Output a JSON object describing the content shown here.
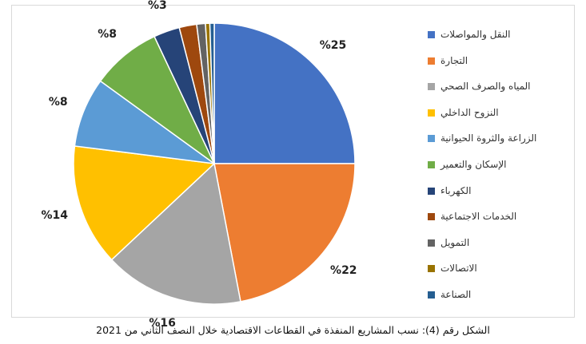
{
  "caption": "الشكل رقم (4): نسب المشاريع المنفذة في القطاعات الاقتصادية خلال النصف الثاني من 2021",
  "chart_data": {
    "type": "pie",
    "title": "",
    "slices": [
      {
        "name": "النقل والمواصلات",
        "value": 25,
        "color": "#4472c4",
        "label": "%25"
      },
      {
        "name": "التجارة",
        "value": 22,
        "color": "#ed7d31",
        "label": "%22"
      },
      {
        "name": "المياه والصرف الصحي",
        "value": 16,
        "color": "#a5a5a5",
        "label": "%16"
      },
      {
        "name": "النزوح الداخلي",
        "value": 14,
        "color": "#ffc000",
        "label": "%14"
      },
      {
        "name": "الزراعة والثروة الحيوانية",
        "value": 8,
        "color": "#5b9bd5",
        "label": "%8"
      },
      {
        "name": "الإسكان والتعمير",
        "value": 8,
        "color": "#70ad47",
        "label": "%8"
      },
      {
        "name": "الكهرباء",
        "value": 3,
        "color": "#264478",
        "label": "%3"
      },
      {
        "name": "الخدمات الاجتماعية",
        "value": 2,
        "color": "#9e480e",
        "label": ""
      },
      {
        "name": "التمويل",
        "value": 1,
        "color": "#636363",
        "label": ""
      },
      {
        "name": "الاتصالات",
        "value": 0.5,
        "color": "#997300",
        "label": ""
      },
      {
        "name": "الصناعة",
        "value": 0.5,
        "color": "#255e91",
        "label": ""
      }
    ],
    "legend_position": "right"
  }
}
